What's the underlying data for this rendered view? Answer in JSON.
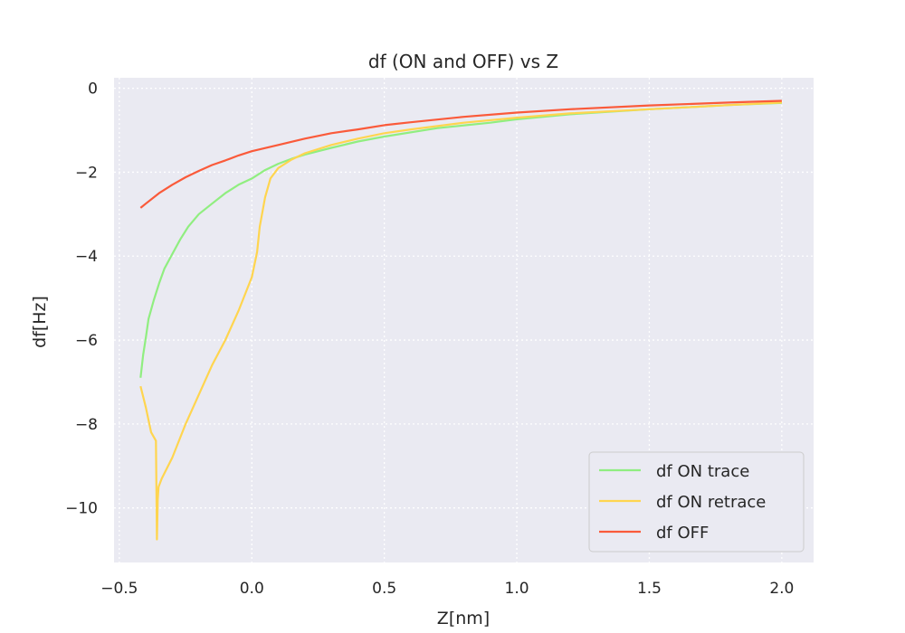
{
  "chart_data": {
    "type": "line",
    "title": "df (ON and OFF) vs Z",
    "xlabel": "Z[nm]",
    "ylabel": "df[Hz]",
    "xlim": [
      -0.52,
      2.12
    ],
    "ylim": [
      -11.3,
      0.25
    ],
    "xticks": [
      -0.5,
      0.0,
      0.5,
      1.0,
      1.5,
      2.0
    ],
    "xtick_labels": [
      "−0.5",
      "0.0",
      "0.5",
      "1.0",
      "1.5",
      "2.0"
    ],
    "yticks": [
      0,
      -2,
      -4,
      -6,
      -8,
      -10
    ],
    "ytick_labels": [
      "0",
      "−2",
      "−4",
      "−6",
      "−8",
      "−10"
    ],
    "grid": true,
    "legend_position": "lower-right",
    "series": [
      {
        "name": "df ON trace",
        "color": "#90ee80",
        "x": [
          -0.42,
          -0.41,
          -0.4,
          -0.39,
          -0.37,
          -0.35,
          -0.33,
          -0.3,
          -0.27,
          -0.24,
          -0.2,
          -0.15,
          -0.1,
          -0.05,
          0.0,
          0.05,
          0.1,
          0.15,
          0.2,
          0.3,
          0.4,
          0.5,
          0.7,
          0.9,
          1.0,
          1.2,
          1.5,
          1.8,
          2.0
        ],
        "y": [
          -6.9,
          -6.35,
          -5.95,
          -5.5,
          -5.05,
          -4.65,
          -4.3,
          -3.95,
          -3.6,
          -3.3,
          -3.0,
          -2.75,
          -2.5,
          -2.3,
          -2.15,
          -1.95,
          -1.8,
          -1.68,
          -1.58,
          -1.42,
          -1.27,
          -1.15,
          -0.95,
          -0.82,
          -0.74,
          -0.62,
          -0.5,
          -0.4,
          -0.35
        ]
      },
      {
        "name": "df ON retrace",
        "color": "#ffd54f",
        "x": [
          -0.42,
          -0.4,
          -0.38,
          -0.362,
          -0.358,
          -0.355,
          -0.352,
          -0.34,
          -0.3,
          -0.25,
          -0.2,
          -0.15,
          -0.1,
          -0.05,
          0.0,
          0.02,
          0.03,
          0.05,
          0.07,
          0.1,
          0.15,
          0.2,
          0.3,
          0.4,
          0.5,
          0.6,
          0.8,
          1.0,
          1.2,
          1.5,
          1.8,
          2.0
        ],
        "y": [
          -7.1,
          -7.6,
          -8.2,
          -8.4,
          -10.75,
          -9.8,
          -9.5,
          -9.3,
          -8.8,
          -8.0,
          -7.3,
          -6.6,
          -6.0,
          -5.3,
          -4.5,
          -3.9,
          -3.3,
          -2.6,
          -2.15,
          -1.9,
          -1.7,
          -1.55,
          -1.35,
          -1.2,
          -1.07,
          -0.98,
          -0.82,
          -0.7,
          -0.6,
          -0.5,
          -0.4,
          -0.34
        ]
      },
      {
        "name": "df OFF",
        "color": "#fa5a3a",
        "x": [
          -0.42,
          -0.4,
          -0.35,
          -0.3,
          -0.25,
          -0.2,
          -0.15,
          -0.1,
          -0.05,
          0.0,
          0.1,
          0.2,
          0.3,
          0.4,
          0.5,
          0.6,
          0.8,
          1.0,
          1.2,
          1.5,
          1.8,
          2.0
        ],
        "y": [
          -2.85,
          -2.75,
          -2.5,
          -2.3,
          -2.12,
          -1.97,
          -1.83,
          -1.72,
          -1.6,
          -1.5,
          -1.35,
          -1.2,
          -1.07,
          -0.98,
          -0.88,
          -0.81,
          -0.68,
          -0.58,
          -0.5,
          -0.41,
          -0.34,
          -0.3
        ]
      }
    ]
  }
}
